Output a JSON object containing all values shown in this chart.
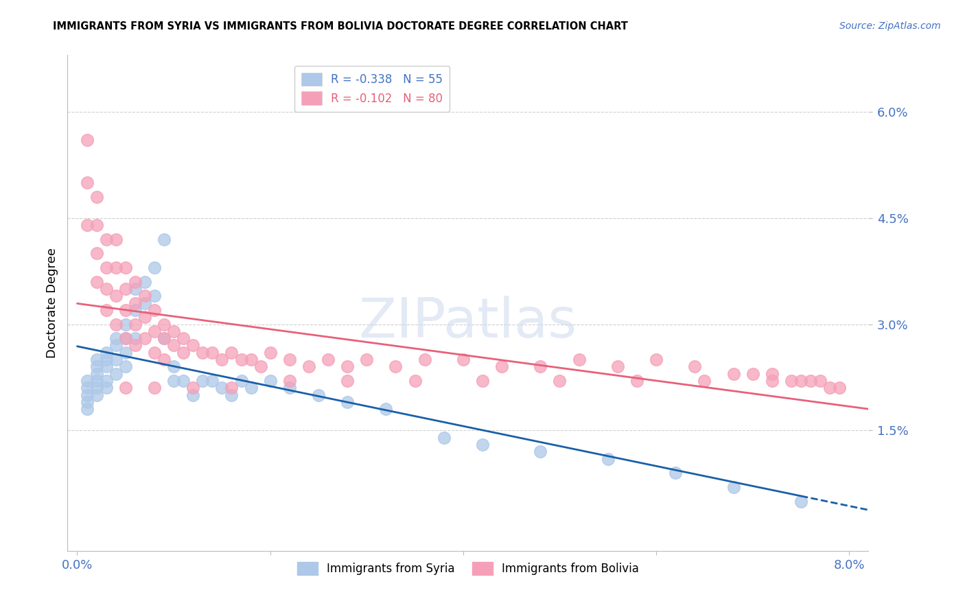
{
  "title": "IMMIGRANTS FROM SYRIA VS IMMIGRANTS FROM BOLIVIA DOCTORATE DEGREE CORRELATION CHART",
  "source": "Source: ZipAtlas.com",
  "ylabel": "Doctorate Degree",
  "ytick_labels": [
    "6.0%",
    "4.5%",
    "3.0%",
    "1.5%"
  ],
  "ytick_values": [
    0.06,
    0.045,
    0.03,
    0.015
  ],
  "xtick_values": [
    0.0,
    0.02,
    0.04,
    0.06,
    0.08
  ],
  "xlim": [
    -0.001,
    0.082
  ],
  "ylim": [
    -0.002,
    0.068
  ],
  "legend_syria": "R = -0.338   N = 55",
  "legend_bolivia": "R = -0.102   N = 80",
  "syria_color": "#adc8e8",
  "bolivia_color": "#f5a0b8",
  "syria_line_color": "#1a5fa8",
  "bolivia_line_color": "#e8607a",
  "syria_scatter_x": [
    0.001,
    0.001,
    0.001,
    0.001,
    0.001,
    0.002,
    0.002,
    0.002,
    0.002,
    0.002,
    0.002,
    0.003,
    0.003,
    0.003,
    0.003,
    0.003,
    0.004,
    0.004,
    0.004,
    0.004,
    0.005,
    0.005,
    0.005,
    0.005,
    0.006,
    0.006,
    0.006,
    0.007,
    0.007,
    0.008,
    0.008,
    0.009,
    0.009,
    0.01,
    0.01,
    0.011,
    0.012,
    0.013,
    0.014,
    0.015,
    0.016,
    0.017,
    0.018,
    0.02,
    0.022,
    0.025,
    0.028,
    0.032,
    0.038,
    0.042,
    0.048,
    0.055,
    0.062,
    0.068,
    0.075
  ],
  "syria_scatter_y": [
    0.022,
    0.021,
    0.02,
    0.019,
    0.018,
    0.025,
    0.024,
    0.023,
    0.022,
    0.021,
    0.02,
    0.026,
    0.025,
    0.024,
    0.022,
    0.021,
    0.028,
    0.027,
    0.025,
    0.023,
    0.03,
    0.028,
    0.026,
    0.024,
    0.035,
    0.032,
    0.028,
    0.036,
    0.033,
    0.038,
    0.034,
    0.042,
    0.028,
    0.024,
    0.022,
    0.022,
    0.02,
    0.022,
    0.022,
    0.021,
    0.02,
    0.022,
    0.021,
    0.022,
    0.021,
    0.02,
    0.019,
    0.018,
    0.014,
    0.013,
    0.012,
    0.011,
    0.009,
    0.007,
    0.005
  ],
  "bolivia_scatter_x": [
    0.001,
    0.001,
    0.001,
    0.002,
    0.002,
    0.002,
    0.002,
    0.003,
    0.003,
    0.003,
    0.003,
    0.004,
    0.004,
    0.004,
    0.004,
    0.005,
    0.005,
    0.005,
    0.005,
    0.006,
    0.006,
    0.006,
    0.006,
    0.007,
    0.007,
    0.007,
    0.008,
    0.008,
    0.008,
    0.009,
    0.009,
    0.009,
    0.01,
    0.01,
    0.011,
    0.011,
    0.012,
    0.013,
    0.014,
    0.015,
    0.016,
    0.017,
    0.018,
    0.019,
    0.02,
    0.022,
    0.024,
    0.026,
    0.028,
    0.03,
    0.033,
    0.036,
    0.04,
    0.044,
    0.048,
    0.052,
    0.056,
    0.06,
    0.064,
    0.068,
    0.07,
    0.072,
    0.074,
    0.075,
    0.076,
    0.077,
    0.078,
    0.079,
    0.072,
    0.065,
    0.058,
    0.05,
    0.042,
    0.035,
    0.028,
    0.022,
    0.016,
    0.012,
    0.008,
    0.005
  ],
  "bolivia_scatter_y": [
    0.056,
    0.05,
    0.044,
    0.048,
    0.044,
    0.04,
    0.036,
    0.042,
    0.038,
    0.035,
    0.032,
    0.042,
    0.038,
    0.034,
    0.03,
    0.038,
    0.035,
    0.032,
    0.028,
    0.036,
    0.033,
    0.03,
    0.027,
    0.034,
    0.031,
    0.028,
    0.032,
    0.029,
    0.026,
    0.03,
    0.028,
    0.025,
    0.029,
    0.027,
    0.028,
    0.026,
    0.027,
    0.026,
    0.026,
    0.025,
    0.026,
    0.025,
    0.025,
    0.024,
    0.026,
    0.025,
    0.024,
    0.025,
    0.024,
    0.025,
    0.024,
    0.025,
    0.025,
    0.024,
    0.024,
    0.025,
    0.024,
    0.025,
    0.024,
    0.023,
    0.023,
    0.023,
    0.022,
    0.022,
    0.022,
    0.022,
    0.021,
    0.021,
    0.022,
    0.022,
    0.022,
    0.022,
    0.022,
    0.022,
    0.022,
    0.022,
    0.021,
    0.021,
    0.021,
    0.021
  ],
  "syria_line_x": [
    0.0,
    0.075
  ],
  "syria_line_solid_end": 0.075,
  "syria_line_dash_end": 0.082,
  "bolivia_line_x": [
    0.0,
    0.082
  ]
}
